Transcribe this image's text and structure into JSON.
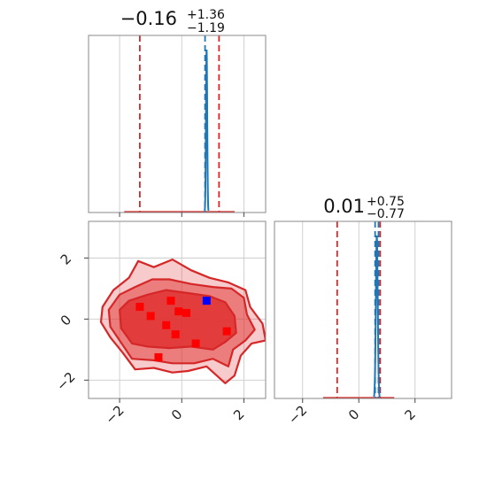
{
  "colors": {
    "quantile_line": "#d62728",
    "truth_line": "#1f77b4",
    "marginal_line": "#1f77b4",
    "contour_fill": "#e03030",
    "marker_red": "#ff0000",
    "marker_blue": "#0000ff"
  },
  "chart_data": {
    "type": "corner",
    "panels": [
      {
        "id": "marginal-param-1",
        "kind": "histogram",
        "title": {
          "main": "−0.16",
          "plus": "+1.36",
          "minus": "−1.19"
        },
        "xlim": [
          -3,
          2.7
        ],
        "x_ticks": [
          -2,
          0,
          2
        ],
        "x_tick_labels_shown": false,
        "quantiles": [
          -1.35,
          1.2
        ],
        "truth_lines": [
          0.75
        ],
        "peak": {
          "x": 0.8,
          "width": 0.06
        },
        "grid": true
      },
      {
        "id": "marginal-param-2",
        "kind": "histogram",
        "title": {
          "main": "0.01",
          "plus": "+0.75",
          "minus": "−0.77"
        },
        "xlim": [
          -3,
          3.3
        ],
        "x_ticks": [
          -2,
          0,
          2
        ],
        "x_tick_labels": [
          "−2",
          "0",
          "2"
        ],
        "quantiles": [
          -0.77,
          0.76
        ],
        "truth_lines": [
          0.58,
          0.7
        ],
        "peak": {
          "x": 0.64,
          "width": 0.1
        },
        "grid": true
      },
      {
        "id": "joint-param-1-param-2",
        "kind": "contour",
        "xlim": [
          -3,
          2.7
        ],
        "ylim": [
          -2.6,
          3.2
        ],
        "x_ticks": [
          -2,
          0,
          2
        ],
        "x_tick_labels": [
          "−2",
          "0",
          "2"
        ],
        "y_ticks": [
          -2,
          0,
          2
        ],
        "y_tick_labels": [
          "−2",
          "0",
          "2"
        ],
        "contour_levels": [
          [
            [
              -2.55,
              0.4
            ],
            [
              -2.2,
              0.95
            ],
            [
              -1.7,
              1.35
            ],
            [
              -1.4,
              1.9
            ],
            [
              -0.9,
              1.7
            ],
            [
              -0.3,
              1.95
            ],
            [
              0.3,
              1.6
            ],
            [
              0.9,
              1.35
            ],
            [
              1.5,
              1.2
            ],
            [
              2.05,
              0.95
            ],
            [
              2.2,
              0.4
            ],
            [
              2.6,
              -0.15
            ],
            [
              2.7,
              -0.7
            ],
            [
              2.25,
              -0.8
            ],
            [
              1.9,
              -1.2
            ],
            [
              1.7,
              -1.85
            ],
            [
              1.4,
              -2.1
            ],
            [
              0.8,
              -1.55
            ],
            [
              0.2,
              -1.7
            ],
            [
              -0.3,
              -1.75
            ],
            [
              -0.9,
              -1.6
            ],
            [
              -1.5,
              -1.65
            ],
            [
              -1.9,
              -1.1
            ],
            [
              -2.3,
              -0.6
            ],
            [
              -2.6,
              -0.1
            ]
          ],
          [
            [
              -2.35,
              0.3
            ],
            [
              -2.0,
              0.8
            ],
            [
              -1.5,
              1.05
            ],
            [
              -0.95,
              1.3
            ],
            [
              -0.4,
              1.3
            ],
            [
              0.3,
              1.15
            ],
            [
              1.0,
              1.05
            ],
            [
              1.6,
              1.0
            ],
            [
              2.0,
              0.7
            ],
            [
              2.1,
              0.15
            ],
            [
              2.35,
              -0.35
            ],
            [
              2.05,
              -0.7
            ],
            [
              1.65,
              -1.0
            ],
            [
              1.5,
              -1.55
            ],
            [
              1.0,
              -1.3
            ],
            [
              0.4,
              -1.45
            ],
            [
              -0.3,
              -1.45
            ],
            [
              -0.9,
              -1.35
            ],
            [
              -1.6,
              -1.3
            ],
            [
              -2.0,
              -0.7
            ],
            [
              -2.3,
              -0.25
            ]
          ],
          [
            [
              -2.0,
              0.3
            ],
            [
              -1.7,
              0.6
            ],
            [
              -1.1,
              0.8
            ],
            [
              -0.5,
              0.95
            ],
            [
              0.2,
              0.85
            ],
            [
              0.9,
              0.75
            ],
            [
              1.4,
              0.55
            ],
            [
              1.7,
              0.1
            ],
            [
              1.75,
              -0.45
            ],
            [
              1.4,
              -0.75
            ],
            [
              1.0,
              -1.0
            ],
            [
              0.3,
              -0.9
            ],
            [
              -0.4,
              -0.95
            ],
            [
              -1.1,
              -0.9
            ],
            [
              -1.6,
              -0.8
            ],
            [
              -1.95,
              -0.3
            ]
          ]
        ],
        "samples_red": [
          [
            -1.35,
            0.4
          ],
          [
            -1.0,
            0.1
          ],
          [
            -0.35,
            0.6
          ],
          [
            -0.1,
            0.25
          ],
          [
            0.15,
            0.2
          ],
          [
            -0.5,
            -0.2
          ],
          [
            -0.2,
            -0.5
          ],
          [
            0.45,
            -0.8
          ],
          [
            1.45,
            -0.4
          ],
          [
            -0.75,
            -1.25
          ]
        ],
        "samples_blue": [
          [
            0.8,
            0.6
          ]
        ],
        "grid": true
      }
    ]
  }
}
